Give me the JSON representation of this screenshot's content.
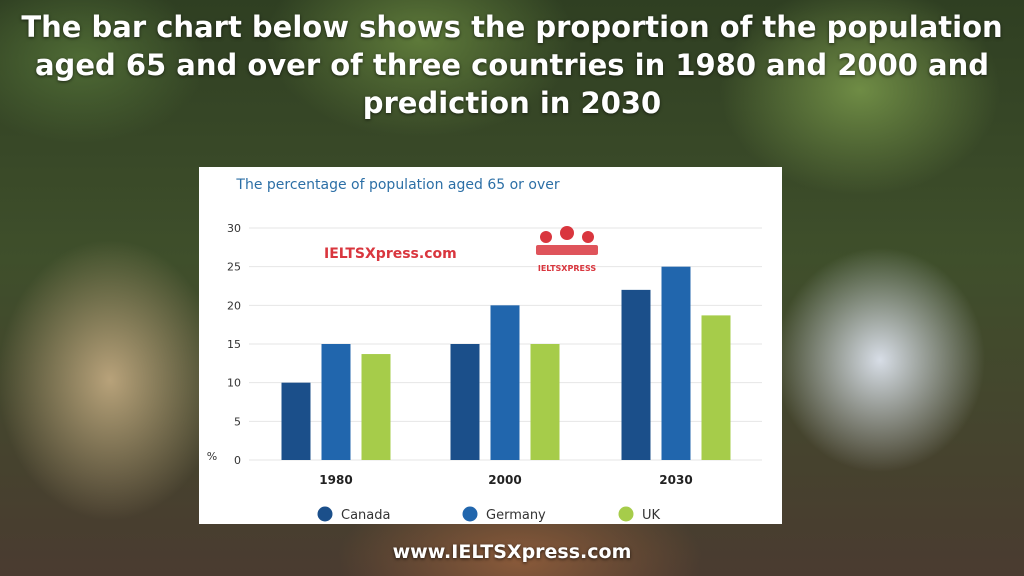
{
  "headline": "The bar chart below shows the proportion of the population aged 65 and over of three countries in 1980 and 2000 and prediction in 2030",
  "footer_url": "www.IELTSXpress.com",
  "watermark": {
    "text": "IELTSXpress.com",
    "logo_text": "IELTSXPRESS",
    "color": "#d9363e"
  },
  "chart_data": {
    "type": "bar",
    "title": "The percentage of population aged 65 or over",
    "ylabel": "%",
    "xlabel": "",
    "categories": [
      "1980",
      "2000",
      "2030"
    ],
    "yticks": [
      0,
      5,
      10,
      15,
      20,
      25,
      30
    ],
    "ylim": [
      0,
      30
    ],
    "grid": true,
    "legend_position": "bottom",
    "series": [
      {
        "name": "Canada",
        "values": [
          10,
          15,
          22
        ],
        "color": "#1b4f8a"
      },
      {
        "name": "Germany",
        "values": [
          15,
          20,
          25
        ],
        "color": "#2166ad"
      },
      {
        "name": "UK",
        "values": [
          13.7,
          15,
          18.7
        ],
        "color": "#a6cc4a"
      }
    ]
  }
}
